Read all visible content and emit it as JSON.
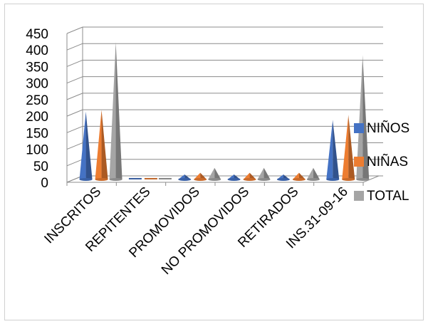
{
  "chart_data": {
    "type": "bar",
    "style": "3d-cone",
    "title": "",
    "xlabel": "",
    "ylabel": "",
    "ylim": [
      0,
      450
    ],
    "yticks": [
      0,
      50,
      100,
      150,
      200,
      250,
      300,
      350,
      400,
      450
    ],
    "grid": true,
    "legend_position": "right",
    "categories": [
      "INSCRITOS",
      "REPITENTES",
      "PROMOVIDOS",
      "NO PROMOVIDOS",
      "RETIRADOS",
      "INS.31-09-16"
    ],
    "series": [
      {
        "name": "NIÑOS",
        "color": "#4472C4",
        "values": [
          205,
          0,
          15,
          15,
          15,
          180
        ]
      },
      {
        "name": "NIÑAS",
        "color": "#ED7D31",
        "values": [
          210,
          0,
          20,
          20,
          20,
          195
        ]
      },
      {
        "name": "TOTAL",
        "color": "#A5A5A5",
        "values": [
          415,
          0,
          35,
          35,
          35,
          375
        ]
      }
    ]
  }
}
